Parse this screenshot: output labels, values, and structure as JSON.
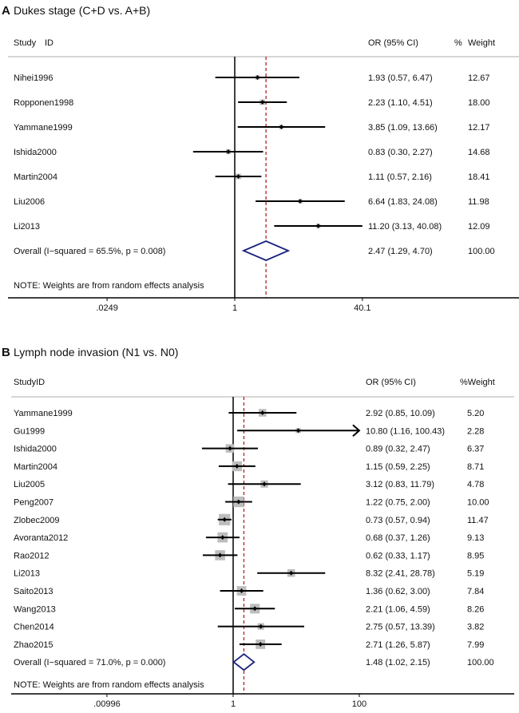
{
  "chart_data": [
    {
      "type": "forest",
      "panel_letter": "A",
      "title": "Dukes stage (C+D vs. A+B)",
      "headers": {
        "study": "Study",
        "id": "ID",
        "or": "OR (95% CI)",
        "pct": "%",
        "weight": "Weight"
      },
      "studies": [
        {
          "id": "Nihei1996",
          "or": 1.93,
          "lo": 0.57,
          "hi": 6.47,
          "or_text": "1.93 (0.57, 6.47)",
          "weight": "12.67"
        },
        {
          "id": "Ropponen1998",
          "or": 2.23,
          "lo": 1.1,
          "hi": 4.51,
          "or_text": "2.23 (1.10, 4.51)",
          "weight": "18.00"
        },
        {
          "id": "Yammane1999",
          "or": 3.85,
          "lo": 1.09,
          "hi": 13.66,
          "or_text": "3.85 (1.09, 13.66)",
          "weight": "12.17"
        },
        {
          "id": "Ishida2000",
          "or": 0.83,
          "lo": 0.3,
          "hi": 2.27,
          "or_text": "0.83 (0.30, 2.27)",
          "weight": "14.68"
        },
        {
          "id": "Martin2004",
          "or": 1.11,
          "lo": 0.57,
          "hi": 2.16,
          "or_text": "1.11 (0.57, 2.16)",
          "weight": "18.41"
        },
        {
          "id": "Liu2006",
          "or": 6.64,
          "lo": 1.83,
          "hi": 24.08,
          "or_text": "6.64 (1.83, 24.08)",
          "weight": "11.98"
        },
        {
          "id": "Li2013",
          "or": 11.2,
          "lo": 3.13,
          "hi": 40.08,
          "or_text": "11.20 (3.13, 40.08)",
          "weight": "12.09"
        }
      ],
      "overall": {
        "label": "Overall  (I−squared = 65.5%, p = 0.008)",
        "or": 2.47,
        "lo": 1.29,
        "hi": 4.7,
        "or_text": "2.47 (1.29, 4.70)",
        "weight": "100.00"
      },
      "note": "NOTE: Weights are from random effects analysis",
      "x_ticks": [
        {
          "value": 0.0249,
          "label": ".0249"
        },
        {
          "value": 1,
          "label": "1"
        },
        {
          "value": 40.1,
          "label": "40.1"
        }
      ],
      "x_scale": "log",
      "colors": {
        "line": "#000000",
        "dashed": "#b22222",
        "diamond": "#1a237e",
        "box": "#bdbdbd"
      }
    },
    {
      "type": "forest",
      "panel_letter": "B",
      "title": "Lymph node invasion (N1 vs. N0)",
      "headers": {
        "study": "StudyID",
        "or": "OR (95% CI)",
        "weight": "%Weight"
      },
      "studies": [
        {
          "id": "Yammane1999",
          "or": 2.92,
          "lo": 0.85,
          "hi": 10.09,
          "or_text": "2.92 (0.85, 10.09)",
          "weight": "5.20"
        },
        {
          "id": "Gu1999",
          "or": 10.8,
          "lo": 1.16,
          "hi": 100.43,
          "or_text": "10.80 (1.16, 100.43)",
          "weight": "2.28"
        },
        {
          "id": "Ishida2000",
          "or": 0.89,
          "lo": 0.32,
          "hi": 2.47,
          "or_text": "0.89 (0.32, 2.47)",
          "weight": "6.37"
        },
        {
          "id": "Martin2004",
          "or": 1.15,
          "lo": 0.59,
          "hi": 2.25,
          "or_text": "1.15 (0.59, 2.25)",
          "weight": "8.71"
        },
        {
          "id": "Liu2005",
          "or": 3.12,
          "lo": 0.83,
          "hi": 11.79,
          "or_text": "3.12 (0.83, 11.79)",
          "weight": "4.78"
        },
        {
          "id": "Peng2007",
          "or": 1.22,
          "lo": 0.75,
          "hi": 2.0,
          "or_text": "1.22 (0.75, 2.00)",
          "weight": "10.00"
        },
        {
          "id": "Zlobec2009",
          "or": 0.73,
          "lo": 0.57,
          "hi": 0.94,
          "or_text": "0.73 (0.57, 0.94)",
          "weight": "11.47"
        },
        {
          "id": "Avoranta2012",
          "or": 0.68,
          "lo": 0.37,
          "hi": 1.26,
          "or_text": "0.68 (0.37, 1.26)",
          "weight": "9.13"
        },
        {
          "id": "Rao2012",
          "or": 0.62,
          "lo": 0.33,
          "hi": 1.17,
          "or_text": "0.62 (0.33, 1.17)",
          "weight": "8.95"
        },
        {
          "id": "Li2013",
          "or": 8.32,
          "lo": 2.41,
          "hi": 28.78,
          "or_text": "8.32 (2.41, 28.78)",
          "weight": "5.19"
        },
        {
          "id": "Saito2013",
          "or": 1.36,
          "lo": 0.62,
          "hi": 3.0,
          "or_text": "1.36 (0.62, 3.00)",
          "weight": "7.84"
        },
        {
          "id": "Wang2013",
          "or": 2.21,
          "lo": 1.06,
          "hi": 4.59,
          "or_text": "2.21 (1.06, 4.59)",
          "weight": "8.26"
        },
        {
          "id": "Chen2014",
          "or": 2.75,
          "lo": 0.57,
          "hi": 13.39,
          "or_text": "2.75 (0.57, 13.39)",
          "weight": "3.82"
        },
        {
          "id": "Zhao2015",
          "or": 2.71,
          "lo": 1.26,
          "hi": 5.87,
          "or_text": "2.71 (1.26, 5.87)",
          "weight": "7.99"
        }
      ],
      "overall": {
        "label": "Overall  (I−squared = 71.0%, p = 0.000)",
        "or": 1.48,
        "lo": 1.02,
        "hi": 2.15,
        "or_text": "1.48 (1.02, 2.15)",
        "weight": "100.00"
      },
      "note": "NOTE: Weights are from random effects analysis",
      "x_ticks": [
        {
          "value": 0.00996,
          "label": ".00996"
        },
        {
          "value": 1,
          "label": "1"
        },
        {
          "value": 100,
          "label": "100"
        }
      ],
      "x_scale": "log",
      "colors": {
        "line": "#000000",
        "dashed": "#b22222",
        "diamond": "#1a237e",
        "box": "#bdbdbd"
      }
    }
  ]
}
